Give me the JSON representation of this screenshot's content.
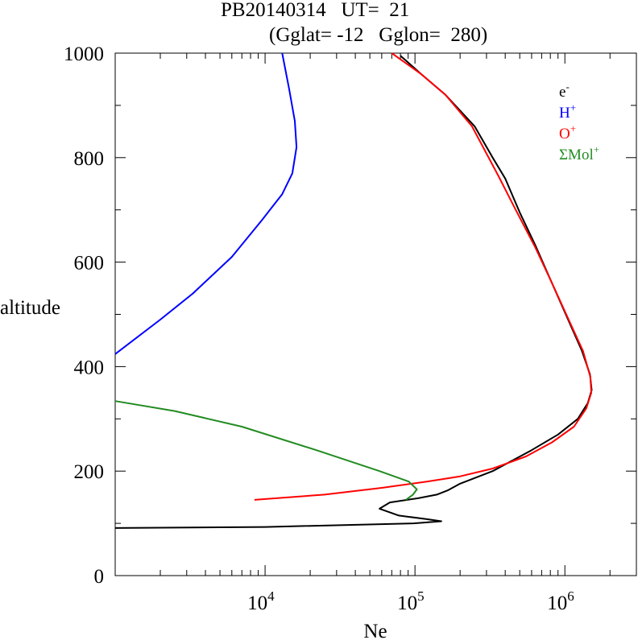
{
  "title": {
    "line1": "PB20140314   UT=  21",
    "line2": "(Gglat= -12   Gglon=  280)"
  },
  "chart_data": {
    "type": "line",
    "xlabel": "Ne",
    "ylabel": "altitude",
    "xscale": "log",
    "xlim": [
      1000,
      3000000
    ],
    "ylim": [
      0,
      1000
    ],
    "x_ticks": [
      {
        "value": 10000,
        "base": "10",
        "exp": "4"
      },
      {
        "value": 100000,
        "base": "10",
        "exp": "5"
      },
      {
        "value": 1000000,
        "base": "10",
        "exp": "6"
      }
    ],
    "y_ticks": [
      "0",
      "200",
      "400",
      "600",
      "800",
      "1000"
    ],
    "legend_position": "top-right",
    "series": [
      {
        "name": "e-",
        "label_base": "e",
        "label_sup": "-",
        "color": "#000000",
        "points": [
          [
            1000,
            91
          ],
          [
            10000,
            93
          ],
          [
            98000,
            100
          ],
          [
            150000,
            104
          ],
          [
            120000,
            108
          ],
          [
            78000,
            115
          ],
          [
            58000,
            128
          ],
          [
            68000,
            140
          ],
          [
            105000,
            148
          ],
          [
            140000,
            155
          ],
          [
            165000,
            163
          ],
          [
            200000,
            176
          ],
          [
            330000,
            200
          ],
          [
            600000,
            240
          ],
          [
            900000,
            270
          ],
          [
            1220000,
            300
          ],
          [
            1420000,
            330
          ],
          [
            1510000,
            355
          ],
          [
            1470000,
            385
          ],
          [
            1300000,
            430
          ],
          [
            1050000,
            490
          ],
          [
            820000,
            560
          ],
          [
            640000,
            630
          ],
          [
            500000,
            695
          ],
          [
            400000,
            760
          ],
          [
            330000,
            800
          ],
          [
            250000,
            860
          ],
          [
            160000,
            920
          ],
          [
            110000,
            960
          ],
          [
            80000,
            995
          ]
        ]
      },
      {
        "name": "H+",
        "label_base": "H",
        "label_sup": "+",
        "color": "#0000ff",
        "points": [
          [
            1000,
            424
          ],
          [
            2000,
            490
          ],
          [
            3300,
            540
          ],
          [
            6000,
            610
          ],
          [
            9500,
            680
          ],
          [
            13000,
            730
          ],
          [
            15200,
            770
          ],
          [
            16200,
            820
          ],
          [
            15800,
            870
          ],
          [
            14500,
            930
          ],
          [
            13000,
            1000
          ]
        ]
      },
      {
        "name": "O+",
        "label_base": "O",
        "label_sup": "+",
        "color": "#ff0000",
        "points": [
          [
            8500,
            145
          ],
          [
            25000,
            155
          ],
          [
            60000,
            168
          ],
          [
            120000,
            180
          ],
          [
            200000,
            190
          ],
          [
            330000,
            205
          ],
          [
            550000,
            228
          ],
          [
            820000,
            255
          ],
          [
            1150000,
            285
          ],
          [
            1390000,
            320
          ],
          [
            1500000,
            350
          ],
          [
            1480000,
            380
          ],
          [
            1320000,
            430
          ],
          [
            1060000,
            490
          ],
          [
            820000,
            560
          ],
          [
            630000,
            630
          ],
          [
            470000,
            700
          ],
          [
            360000,
            765
          ],
          [
            240000,
            860
          ],
          [
            160000,
            920
          ],
          [
            110000,
            960
          ],
          [
            70000,
            1000
          ]
        ]
      },
      {
        "name": "ΣMol+",
        "label_base": "ΣMol",
        "label_sup": "+",
        "color": "#228b22",
        "points": [
          [
            87000,
            145
          ],
          [
            97000,
            155
          ],
          [
            103000,
            165
          ],
          [
            91000,
            180
          ],
          [
            58000,
            200
          ],
          [
            22000,
            240
          ],
          [
            7000,
            285
          ],
          [
            2500,
            315
          ],
          [
            1000,
            334
          ]
        ]
      }
    ]
  }
}
